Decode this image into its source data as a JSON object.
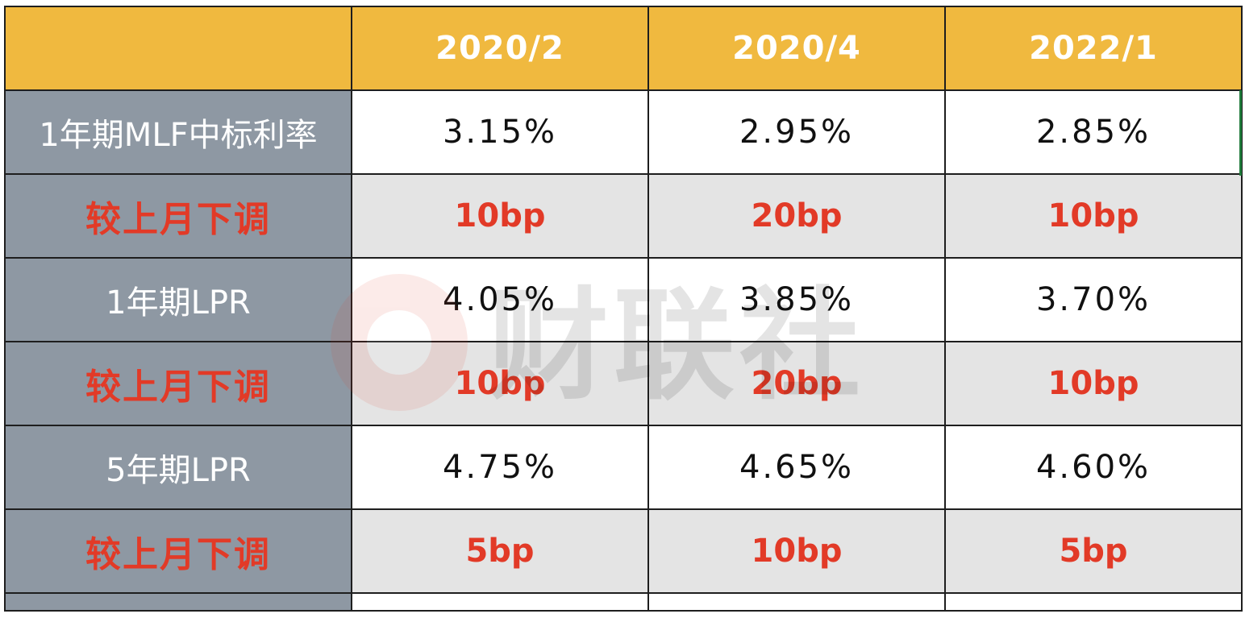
{
  "header": {
    "corner": "",
    "columns": [
      "2020/2",
      "2020/4",
      "2022/1"
    ]
  },
  "rows": [
    {
      "label": "1年期MLF中标利率",
      "values": [
        "3.15%",
        "2.95%",
        "2.85%"
      ]
    },
    {
      "label": "较上月下调",
      "values": [
        "10bp",
        "20bp",
        "10bp"
      ]
    },
    {
      "label": "1年期LPR",
      "values": [
        "4.05%",
        "3.85%",
        "3.70%"
      ]
    },
    {
      "label": "较上月下调",
      "values": [
        "10bp",
        "20bp",
        "10bp"
      ]
    },
    {
      "label": "5年期LPR",
      "values": [
        "4.75%",
        "4.65%",
        "4.60%"
      ]
    },
    {
      "label": "较上月下调",
      "values": [
        "5bp",
        "10bp",
        "5bp"
      ]
    }
  ],
  "watermark": {
    "text": "财联社"
  },
  "colors": {
    "header_bg": "#f0b93f",
    "label_bg": "#8e98a3",
    "highlight_red": "#e23a27",
    "grey_row_bg": "#e4e4e4"
  }
}
